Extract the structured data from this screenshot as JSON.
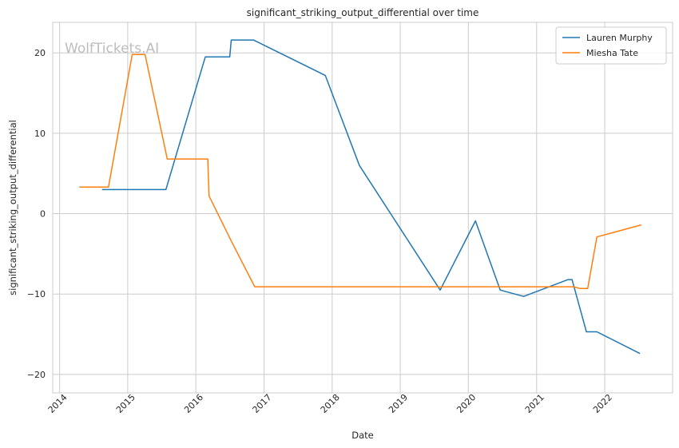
{
  "chart_data": {
    "type": "line",
    "title": "significant_striking_output_differential over time",
    "xlabel": "Date",
    "ylabel": "significant_striking_output_differential",
    "watermark": "WolfTickets.AI",
    "xlim": [
      "2013-11-25",
      "2022-12-31"
    ],
    "ylim": [
      -22.3,
      23.8
    ],
    "x_ticks": [
      "2014",
      "2015",
      "2016",
      "2017",
      "2018",
      "2019",
      "2020",
      "2021",
      "2022"
    ],
    "y_ticks": [
      -20,
      -10,
      0,
      10,
      20
    ],
    "grid": true,
    "legend_position": "top-right",
    "series": [
      {
        "name": "Lauren Murphy",
        "color": "#1f77b4",
        "points": [
          [
            "2014-08-16",
            3.0
          ],
          [
            "2015-07-25",
            3.0
          ],
          [
            "2016-02-21",
            19.5
          ],
          [
            "2016-07-01",
            19.5
          ],
          [
            "2016-07-09",
            21.6
          ],
          [
            "2016-11-05",
            21.6
          ],
          [
            "2017-11-25",
            17.2
          ],
          [
            "2018-05-27",
            6.0
          ],
          [
            "2019-08-03",
            -9.5
          ],
          [
            "2020-02-08",
            -0.9
          ],
          [
            "2020-06-20",
            -9.5
          ],
          [
            "2020-10-24",
            -10.3
          ],
          [
            "2021-06-19",
            -8.2
          ],
          [
            "2021-07-10",
            -8.2
          ],
          [
            "2021-09-25",
            -14.7
          ],
          [
            "2021-11-20",
            -14.7
          ],
          [
            "2022-07-09",
            -17.4
          ]
        ]
      },
      {
        "name": "Miesha Tate",
        "color": "#ff7f0e",
        "points": [
          [
            "2014-04-16",
            3.3
          ],
          [
            "2014-09-20",
            3.3
          ],
          [
            "2015-01-25",
            19.8
          ],
          [
            "2015-04-04",
            19.8
          ],
          [
            "2015-08-01",
            6.8
          ],
          [
            "2016-03-05",
            6.8
          ],
          [
            "2016-03-12",
            2.2
          ],
          [
            "2016-07-09",
            -3.4
          ],
          [
            "2016-11-12",
            -9.1
          ],
          [
            "2021-07-17",
            -9.1
          ],
          [
            "2021-08-21",
            -9.3
          ],
          [
            "2021-10-02",
            -9.3
          ],
          [
            "2021-11-20",
            -2.9
          ],
          [
            "2022-07-16",
            -1.4
          ]
        ]
      }
    ]
  }
}
